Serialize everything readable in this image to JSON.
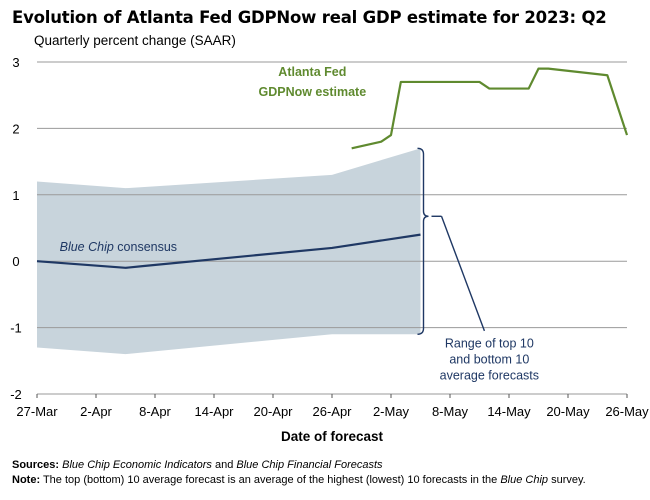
{
  "title": "Evolution of Atlanta Fed GDPNow real GDP estimate for 2023: Q2",
  "subtitle": "Quarterly percent change (SAAR)",
  "footer": {
    "sources_label": "Sources:",
    "sources_source1": "Blue Chip Economic Indicators",
    "sources_and": " and ",
    "sources_source2": "Blue Chip Financial Forecasts",
    "note_label": "Note:",
    "note_text1": " The top (bottom) 10 average forecast is an average of the highest (lowest) 10 forecasts in the ",
    "note_blue_chip": "Blue Chip",
    "note_text2": " survey."
  },
  "colors": {
    "gdpnow": "#5f8a2f",
    "consensus": "#1f3864",
    "range_fill": "#c8d4dc",
    "grid": "#9a9a9a"
  },
  "chart_data": {
    "type": "line",
    "xlabel": "Date of forecast",
    "x_tick_labels": [
      "27-Mar",
      "2-Apr",
      "8-Apr",
      "14-Apr",
      "20-Apr",
      "26-Apr",
      "2-May",
      "8-May",
      "14-May",
      "20-May",
      "26-May"
    ],
    "x_tick_days": [
      0,
      6,
      12,
      18,
      24,
      30,
      36,
      42,
      48,
      54,
      60
    ],
    "x_origin_date": "27-Mar",
    "xlim": [
      0,
      60
    ],
    "ylim": [
      -2,
      3
    ],
    "y_ticks": [
      -2,
      -1,
      0,
      1,
      2,
      3
    ],
    "grid": "horizontal",
    "series": [
      {
        "name": "Atlanta Fed GDPNow estimate",
        "label_lines": [
          "Atlanta Fed",
          "GDPNow estimate"
        ],
        "x": [
          32,
          35,
          36,
          37,
          45,
          46,
          47,
          50,
          51,
          52,
          58,
          60
        ],
        "y": [
          1.7,
          1.8,
          1.9,
          2.7,
          2.7,
          2.6,
          2.6,
          2.6,
          2.9,
          2.9,
          2.8,
          1.9
        ]
      },
      {
        "name": "Blue Chip consensus",
        "label_italic": "Blue Chip",
        "label_rest": " consensus",
        "x": [
          0,
          9,
          11,
          30,
          39
        ],
        "y": [
          0.0,
          -0.1,
          -0.07,
          0.2,
          0.4
        ]
      },
      {
        "name": "Range of top 10 and bottom 10 average forecasts",
        "label_lines": [
          "Range of top 10",
          "and bottom 10",
          "average forecasts"
        ],
        "x": [
          0,
          9,
          30,
          39
        ],
        "upper": [
          1.2,
          1.1,
          1.3,
          1.7
        ],
        "lower": [
          -1.3,
          -1.4,
          -1.1,
          -1.1
        ]
      }
    ]
  }
}
